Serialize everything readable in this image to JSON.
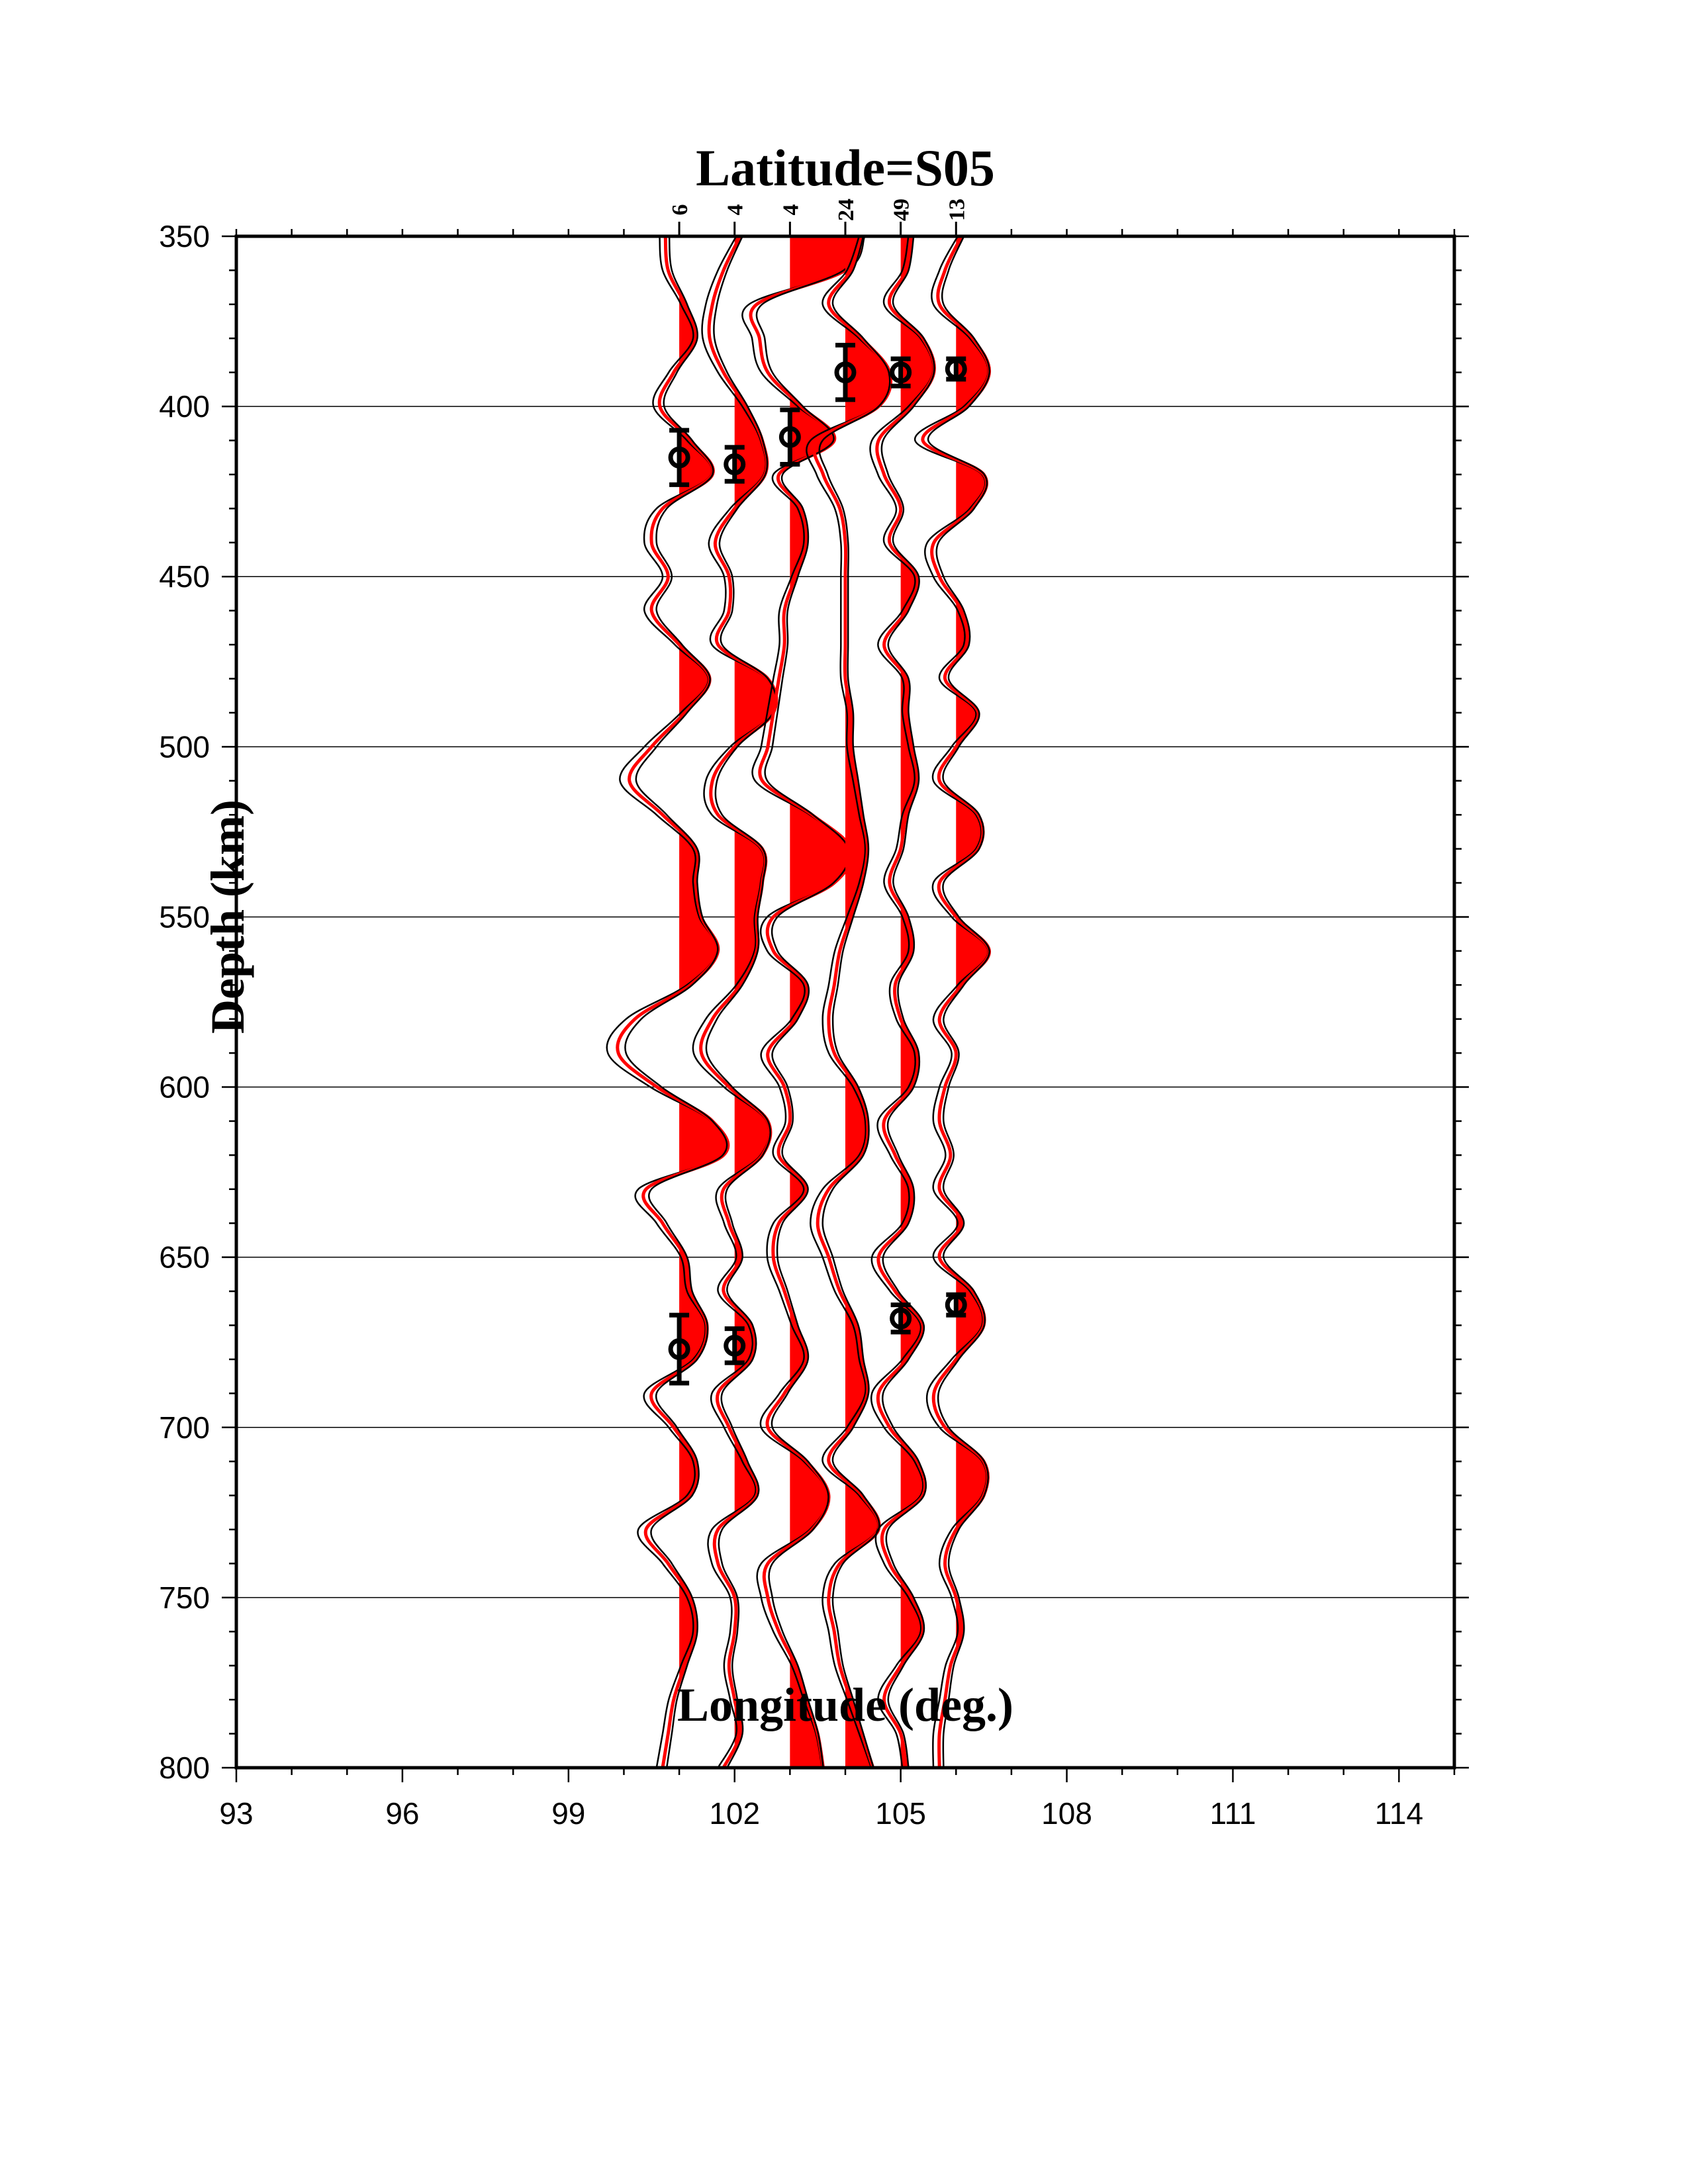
{
  "chart_data": {
    "type": "line",
    "title": "Latitude=S05",
    "xlabel": "Longitude (deg.)",
    "ylabel": "Depth (km)",
    "xlim": [
      93,
      115
    ],
    "ylim": [
      350,
      800
    ],
    "y_inverted": true,
    "grid": "horizontal",
    "x_ticks": [
      "93",
      "96",
      "99",
      "102",
      "105",
      "108",
      "111",
      "114"
    ],
    "y_ticks": [
      "350",
      "400",
      "450",
      "500",
      "550",
      "600",
      "650",
      "700",
      "750",
      "800"
    ],
    "fill_color": "#ff0000",
    "line_colors": [
      "#000000",
      "#ff0000"
    ],
    "depth_sampling": {
      "start": 350,
      "step": 10
    },
    "traces": [
      {
        "longitude": 101,
        "count": "6",
        "amplitude": [
          -0.25,
          -0.2,
          0.1,
          0.3,
          -0.1,
          -0.35,
          0.2,
          0.6,
          -0.3,
          -0.5,
          -0.2,
          -0.5,
          0,
          0.55,
          0.1,
          -0.5,
          -0.9,
          -0.3,
          0.3,
          0.3,
          0.4,
          0.7,
          0.2,
          -0.8,
          -1.1,
          -0.4,
          0.6,
          0.8,
          -0.6,
          -0.3,
          0.1,
          0.2,
          0.5,
          0.3,
          -0.5,
          -0.1,
          0.3,
          0.2,
          -0.6,
          -0.2,
          0.2,
          0.3,
          0.1,
          -0.1,
          -0.2,
          -0.3
        ],
        "picks": [
          {
            "depth": 415,
            "error": 8
          },
          {
            "depth": 677,
            "error": 10
          }
        ]
      },
      {
        "longitude": 102,
        "count": "4",
        "amplitude": [
          0.1,
          -0.2,
          -0.4,
          -0.45,
          -0.2,
          0.2,
          0.5,
          0.55,
          0,
          -0.35,
          -0.1,
          -0.1,
          -0.3,
          0.6,
          0.7,
          0,
          -0.4,
          -0.3,
          0.5,
          0.5,
          0.4,
          0.4,
          0.1,
          -0.4,
          -0.6,
          -0.1,
          0.6,
          0.5,
          -0.2,
          -0.1,
          0.1,
          -0.2,
          0.3,
          0.3,
          -0.3,
          -0.1,
          0.2,
          0.4,
          -0.3,
          -0.3,
          0,
          0,
          -0.1,
          0,
          0.1,
          -0.2
        ],
        "picks": [
          {
            "depth": 417,
            "error": 5
          },
          {
            "depth": 676,
            "error": 5
          }
        ]
      },
      {
        "longitude": 103,
        "count": "4",
        "amplitude": [
          1.3,
          1.0,
          -0.6,
          -0.55,
          -0.4,
          0.2,
          0.8,
          -0.2,
          0.2,
          0.3,
          0.1,
          -0.1,
          -0.1,
          -0.2,
          -0.3,
          -0.4,
          -0.5,
          0.4,
          1.1,
          0.8,
          -0.3,
          -0.3,
          0.3,
          0.1,
          -0.4,
          -0.1,
          0,
          -0.2,
          0.3,
          -0.2,
          -0.3,
          -0.1,
          0.1,
          0.3,
          -0.1,
          -0.4,
          0.3,
          0.7,
          0.4,
          -0.4,
          -0.4,
          -0.2,
          0.1,
          0.3,
          0.5,
          0.6
        ],
        "picks": [
          {
            "depth": 409,
            "error": 8
          }
        ]
      },
      {
        "longitude": 104,
        "count": "24",
        "amplitude": [
          0.3,
          0.1,
          -0.3,
          0.3,
          0.8,
          0.6,
          -0.5,
          -0.4,
          -0.1,
          0,
          0,
          0,
          0,
          0,
          0.1,
          0.1,
          0.2,
          0.3,
          0.4,
          0.3,
          0.1,
          -0.1,
          -0.2,
          -0.3,
          -0.2,
          0.2,
          0.4,
          0.3,
          -0.3,
          -0.5,
          -0.3,
          -0.1,
          0.2,
          0.3,
          0.4,
          0.1,
          -0.3,
          0.3,
          0.6,
          -0.1,
          -0.3,
          -0.2,
          -0.1,
          0.1,
          0.3,
          0.5
        ],
        "picks": [
          {
            "depth": 390,
            "error": 8
          }
        ]
      },
      {
        "longitude": 105,
        "count": "49",
        "amplitude": [
          0.2,
          0.1,
          -0.2,
          0.4,
          0.6,
          0.2,
          -0.4,
          -0.3,
          0,
          -0.2,
          0.3,
          0.1,
          -0.3,
          0.1,
          0.1,
          0.2,
          0.3,
          0.1,
          0,
          -0.2,
          0.1,
          0.2,
          -0.1,
          0,
          0.3,
          0.2,
          -0.3,
          -0.1,
          0.2,
          0.1,
          -0.4,
          -0.1,
          0.4,
          0.1,
          -0.4,
          -0.2,
          0.3,
          0.4,
          -0.3,
          -0.2,
          0.2,
          0.4,
          0,
          -0.3,
          0,
          0.1
        ],
        "picks": [
          {
            "depth": 390,
            "error": 4
          },
          {
            "depth": 668,
            "error": 4
          }
        ]
      },
      {
        "longitude": 106,
        "count": "13",
        "amplitude": [
          0.1,
          -0.2,
          -0.3,
          0.3,
          0.6,
          0.2,
          -0.6,
          0.5,
          0.3,
          -0.4,
          -0.3,
          0.1,
          0.2,
          -0.2,
          0.4,
          0,
          -0.3,
          0.4,
          0.4,
          -0.3,
          0,
          0.6,
          0.1,
          -0.3,
          0,
          -0.2,
          -0.3,
          -0.1,
          -0.3,
          0.1,
          -0.3,
          0.3,
          0.5,
          0,
          -0.4,
          -0.2,
          0.5,
          0.5,
          0,
          -0.2,
          0,
          0.1,
          -0.1,
          -0.2,
          -0.3,
          -0.3
        ],
        "picks": [
          {
            "depth": 389,
            "error": 3
          },
          {
            "depth": 664,
            "error": 3
          }
        ]
      }
    ]
  }
}
